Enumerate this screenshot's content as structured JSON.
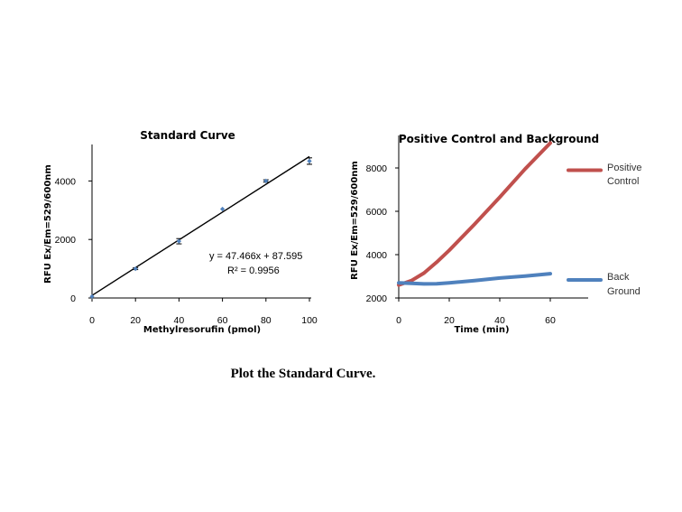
{
  "caption": "Plot the Standard Curve.",
  "chart_data": [
    {
      "type": "scatter",
      "title": "Standard Curve",
      "xlabel": "Methylresorufin (pmol)",
      "ylabel": "RFU Ex/Em=529/600nm",
      "xlim": [
        0,
        100
      ],
      "ylim": [
        0,
        5000
      ],
      "xticks": [
        "0",
        "20",
        "40",
        "60",
        "80",
        "100"
      ],
      "yticks": [
        "0",
        "2000",
        "4000"
      ],
      "points": [
        {
          "x": 0,
          "y": 50,
          "err": 0
        },
        {
          "x": 20,
          "y": 1000,
          "err": 30
        },
        {
          "x": 40,
          "y": 1940,
          "err": 90
        },
        {
          "x": 60,
          "y": 3040,
          "err": 0
        },
        {
          "x": 80,
          "y": 4000,
          "err": 40
        },
        {
          "x": 100,
          "y": 4680,
          "err": 110
        }
      ],
      "trendline": {
        "slope": 47.466,
        "intercept": 87.595,
        "x_range": [
          0,
          100
        ]
      },
      "annotations": {
        "equation": "y = 47.466x + 87.595",
        "r2": "R² = 0.9956"
      },
      "grid": false,
      "colors": {
        "points": "#4f81bd",
        "line": "#000000"
      }
    },
    {
      "type": "line",
      "title": "Positive Control and Background",
      "xlabel": "Time (min)",
      "ylabel": "RFU Ex/Em=529/600nm",
      "xlim": [
        0,
        75
      ],
      "ylim": [
        2000,
        9500
      ],
      "xticks": [
        "0",
        "20",
        "40",
        "60"
      ],
      "yticks": [
        "2000",
        "4000",
        "6000",
        "8000"
      ],
      "legend_position": "right",
      "series": [
        {
          "name": "Positive Control",
          "legend_lines": [
            "Positive",
            "Control"
          ],
          "color": "#c0504d",
          "x": [
            0,
            5,
            10,
            15,
            20,
            30,
            40,
            50,
            60
          ],
          "y": [
            2600,
            2800,
            3150,
            3650,
            4200,
            5400,
            6650,
            7950,
            9150
          ]
        },
        {
          "name": "Back Ground",
          "legend_lines": [
            "Back",
            "Ground"
          ],
          "color": "#4f81bd",
          "x": [
            0,
            5,
            10,
            15,
            20,
            30,
            40,
            50,
            60
          ],
          "y": [
            2700,
            2680,
            2650,
            2660,
            2700,
            2800,
            2920,
            3010,
            3120
          ]
        }
      ],
      "grid": false
    }
  ]
}
